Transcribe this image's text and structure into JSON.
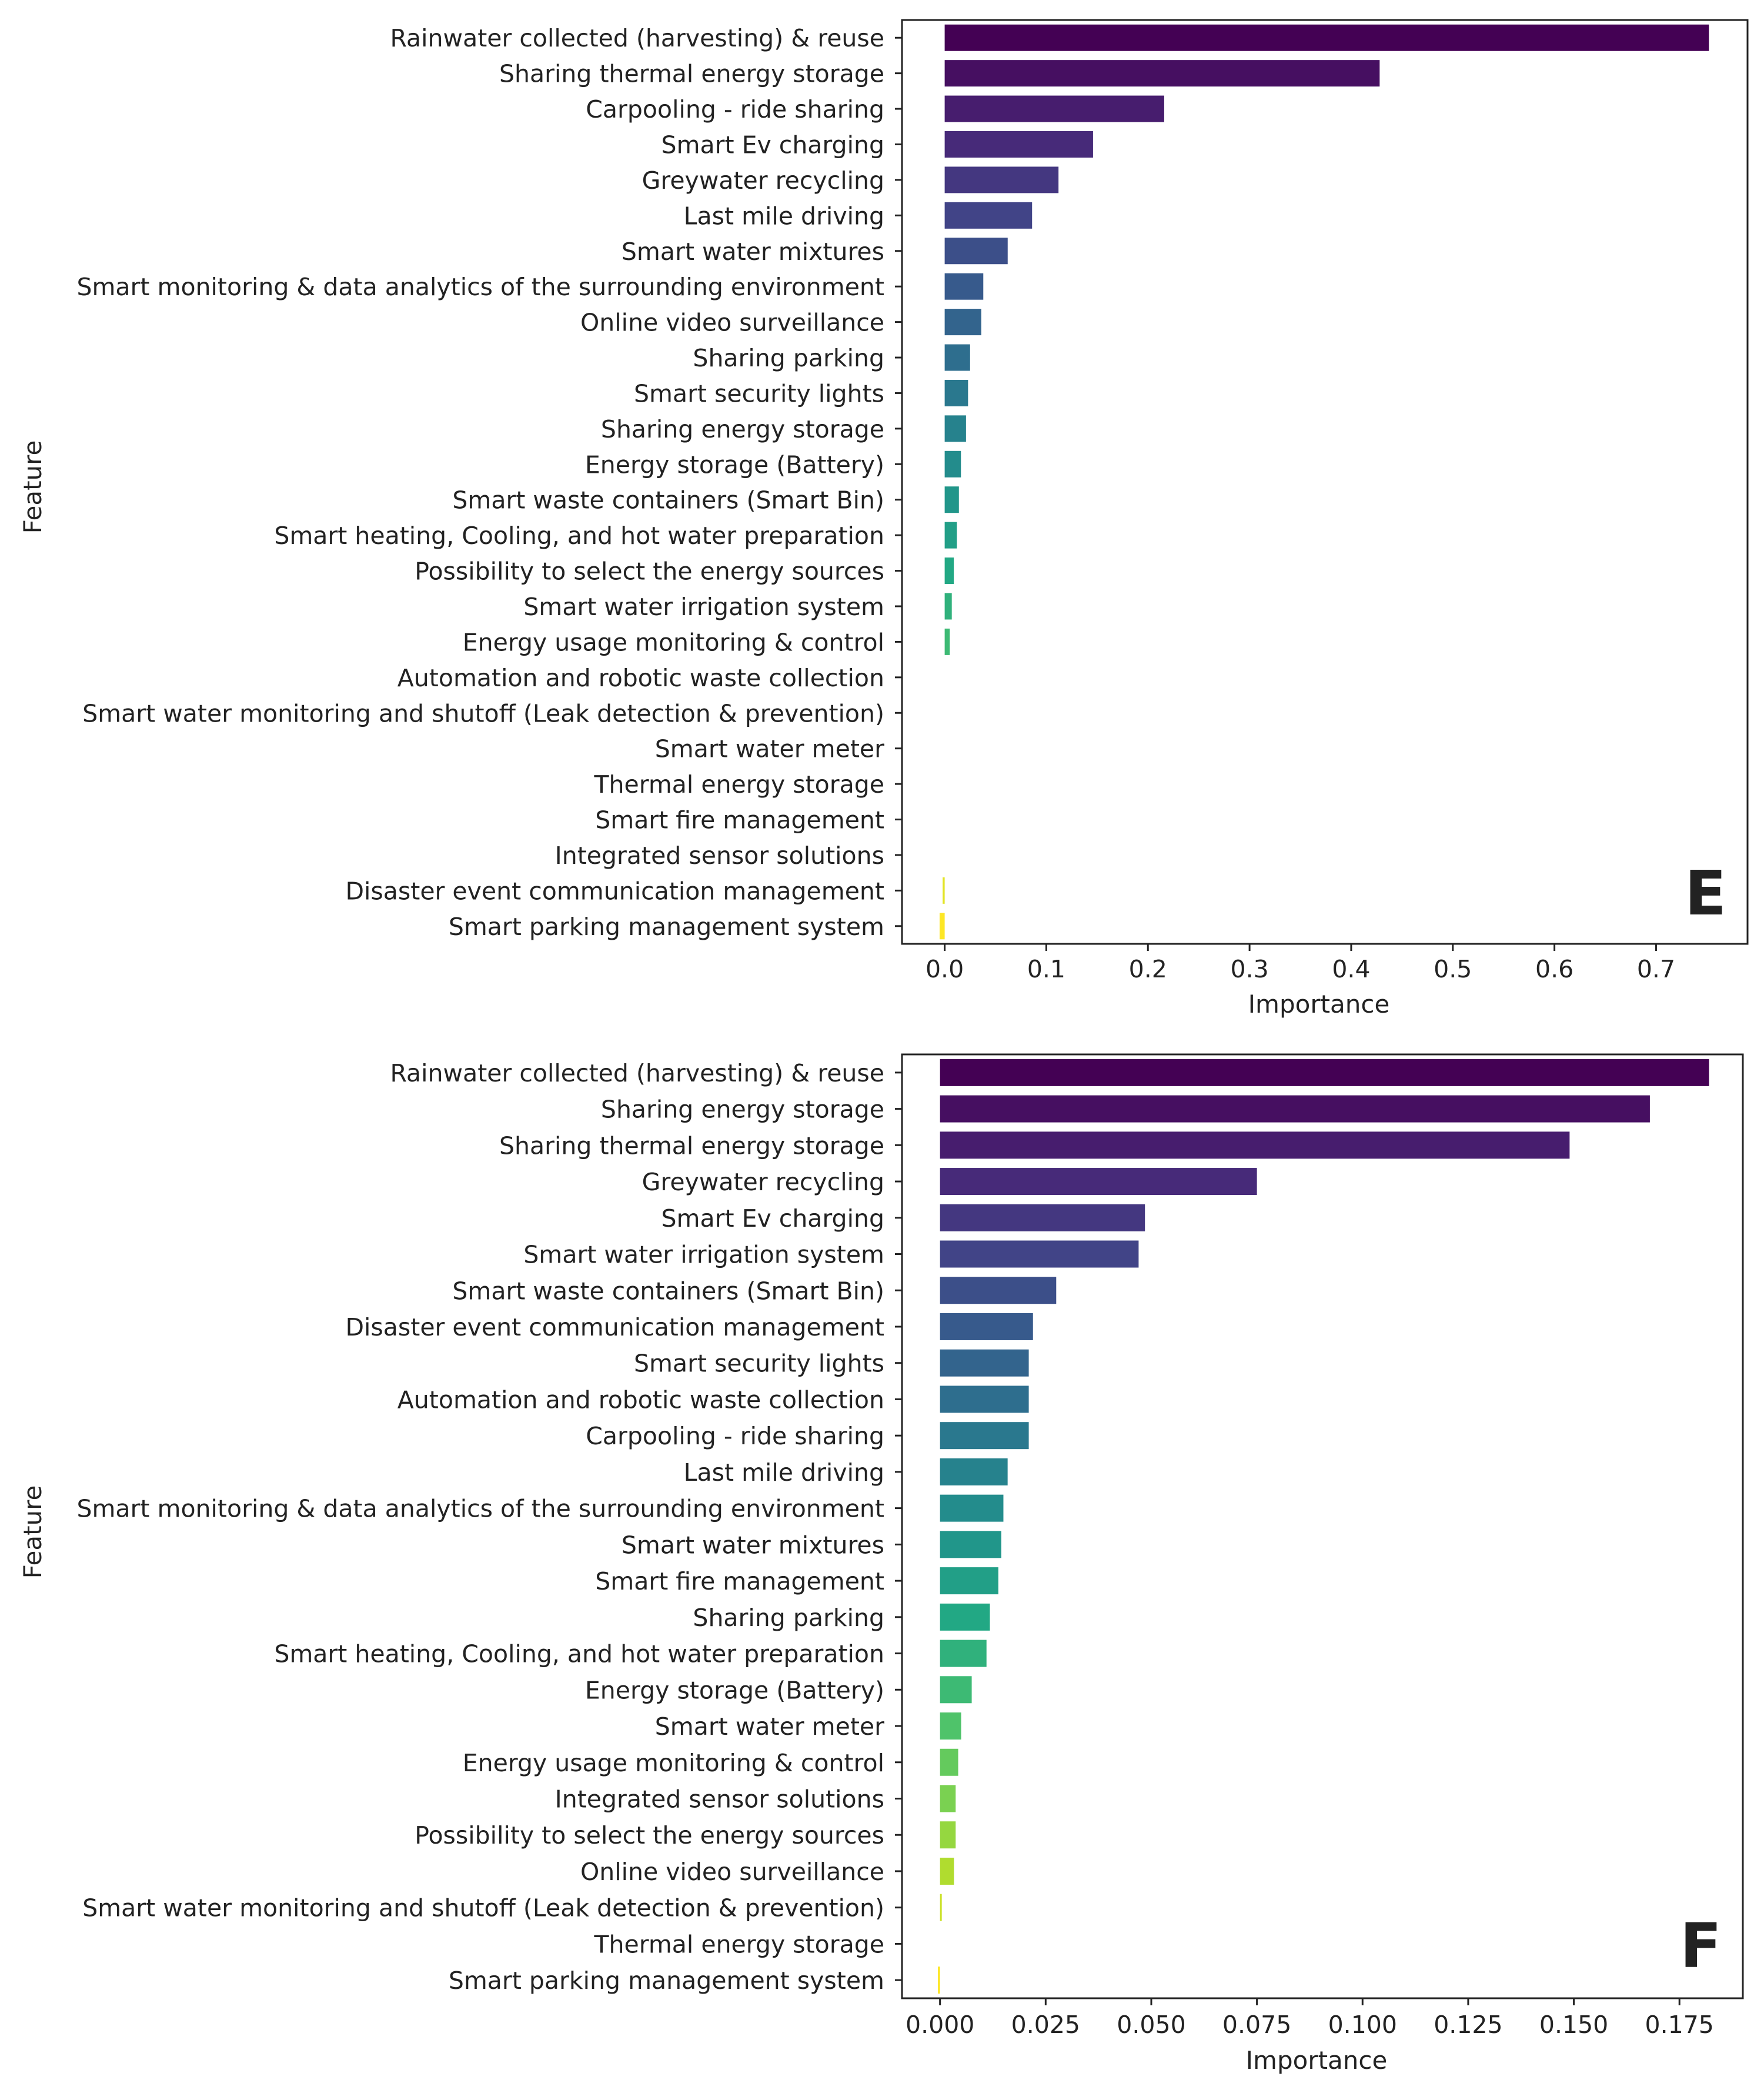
{
  "chart_data": [
    {
      "panel_label": "E",
      "type": "bar",
      "orientation": "horizontal",
      "xlabel": "Importance",
      "ylabel": "Feature",
      "xlim": [
        -0.042,
        0.79
      ],
      "xticks": [
        0.0,
        0.1,
        0.2,
        0.3,
        0.4,
        0.5,
        0.6,
        0.7
      ],
      "xtick_labels": [
        "0.0",
        "0.1",
        "0.2",
        "0.3",
        "0.4",
        "0.5",
        "0.6",
        "0.7"
      ],
      "categories": [
        "Rainwater collected (harvesting) & reuse",
        "Sharing thermal energy storage",
        "Carpooling - ride sharing",
        "Smart Ev charging",
        "Greywater recycling",
        "Last mile driving",
        "Smart water mixtures",
        "Smart monitoring & data analytics of the surrounding environment",
        "Online video surveillance",
        "Sharing parking",
        "Smart security lights",
        "Sharing energy storage",
        "Energy storage (Battery)",
        "Smart waste containers (Smart Bin)",
        "Smart heating, Cooling, and hot water preparation",
        "Possibility to select the energy sources",
        "Smart water irrigation system",
        "Energy usage monitoring & control",
        "Automation and robotic waste collection",
        "Smart water monitoring and shutoff (Leak detection & prevention)",
        "Smart water meter",
        "Thermal energy storage",
        "Smart fire management",
        "Integrated sensor solutions",
        "Disaster event communication management",
        "Smart parking management system"
      ],
      "values": [
        0.752,
        0.428,
        0.216,
        0.146,
        0.112,
        0.086,
        0.062,
        0.038,
        0.036,
        0.025,
        0.023,
        0.021,
        0.016,
        0.014,
        0.012,
        0.009,
        0.007,
        0.005,
        0.0,
        0.0,
        0.0,
        0.0,
        0.0,
        0.0,
        -0.002,
        -0.005
      ]
    },
    {
      "panel_label": "F",
      "type": "bar",
      "orientation": "horizontal",
      "xlabel": "Importance",
      "ylabel": "Feature",
      "xlim": [
        -0.009,
        0.19
      ],
      "xticks": [
        0.0,
        0.025,
        0.05,
        0.075,
        0.1,
        0.125,
        0.15,
        0.175
      ],
      "xtick_labels": [
        "0.000",
        "0.025",
        "0.050",
        "0.075",
        "0.100",
        "0.125",
        "0.150",
        "0.175"
      ],
      "categories": [
        "Rainwater collected (harvesting) & reuse",
        "Sharing energy storage",
        "Sharing thermal energy storage",
        "Greywater recycling",
        "Smart Ev charging",
        "Smart water irrigation system",
        "Smart waste containers (Smart Bin)",
        "Disaster event communication management",
        "Smart security lights",
        "Automation and robotic waste collection",
        "Carpooling - ride sharing",
        "Last mile driving",
        "Smart monitoring & data analytics of the surrounding environment",
        "Smart water mixtures",
        "Smart fire management",
        "Sharing parking",
        "Smart heating, Cooling, and hot water preparation",
        "Energy storage (Battery)",
        "Smart water meter",
        "Energy usage monitoring & control",
        "Integrated sensor solutions",
        "Possibility to select the energy sources",
        "Online video surveillance",
        "Smart water monitoring and shutoff (Leak detection & prevention)",
        "Thermal energy storage",
        "Smart parking management system"
      ],
      "values": [
        0.182,
        0.168,
        0.149,
        0.075,
        0.0485,
        0.047,
        0.0275,
        0.022,
        0.021,
        0.021,
        0.021,
        0.016,
        0.015,
        0.0145,
        0.0138,
        0.0118,
        0.011,
        0.0075,
        0.005,
        0.0043,
        0.0037,
        0.0037,
        0.0033,
        0.0003,
        0.0,
        -0.0005
      ]
    }
  ]
}
